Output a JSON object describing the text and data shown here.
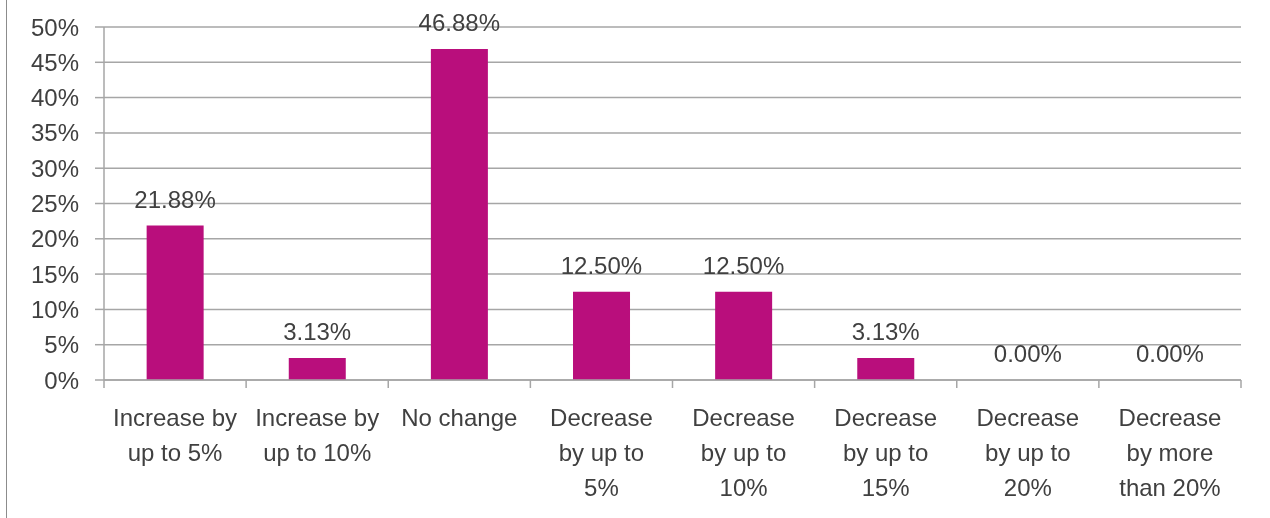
{
  "chart_data": {
    "type": "bar",
    "categories": [
      "Increase by up to 5%",
      "Increase by up to 10%",
      "No change",
      "Decrease by up to 5%",
      "Decrease by up to 10%",
      "Decrease by up to 15%",
      "Decrease by up to 20%",
      "Decrease by more than 20%"
    ],
    "values": [
      21.88,
      3.13,
      46.88,
      12.5,
      12.5,
      3.13,
      0,
      0
    ],
    "color": "#b90e7c",
    "value_labels": [
      "21.88%",
      "3.13%",
      "46.88%",
      "12.50%",
      "12.50%",
      "3.13%",
      "0.00%",
      "0.00%"
    ],
    "ylim": [
      0,
      50
    ],
    "yticks": [
      {
        "value": 0,
        "label": "0%"
      },
      {
        "value": 5,
        "label": "5%"
      },
      {
        "value": 10,
        "label": "10%"
      },
      {
        "value": 15,
        "label": "15%"
      },
      {
        "value": 20,
        "label": "20%"
      },
      {
        "value": 25,
        "label": "25%"
      },
      {
        "value": 30,
        "label": "30%"
      },
      {
        "value": 35,
        "label": "35%"
      },
      {
        "value": 40,
        "label": "40%"
      },
      {
        "value": 45,
        "label": "45%"
      },
      {
        "value": 50,
        "label": "50%"
      }
    ],
    "grid": "y"
  }
}
